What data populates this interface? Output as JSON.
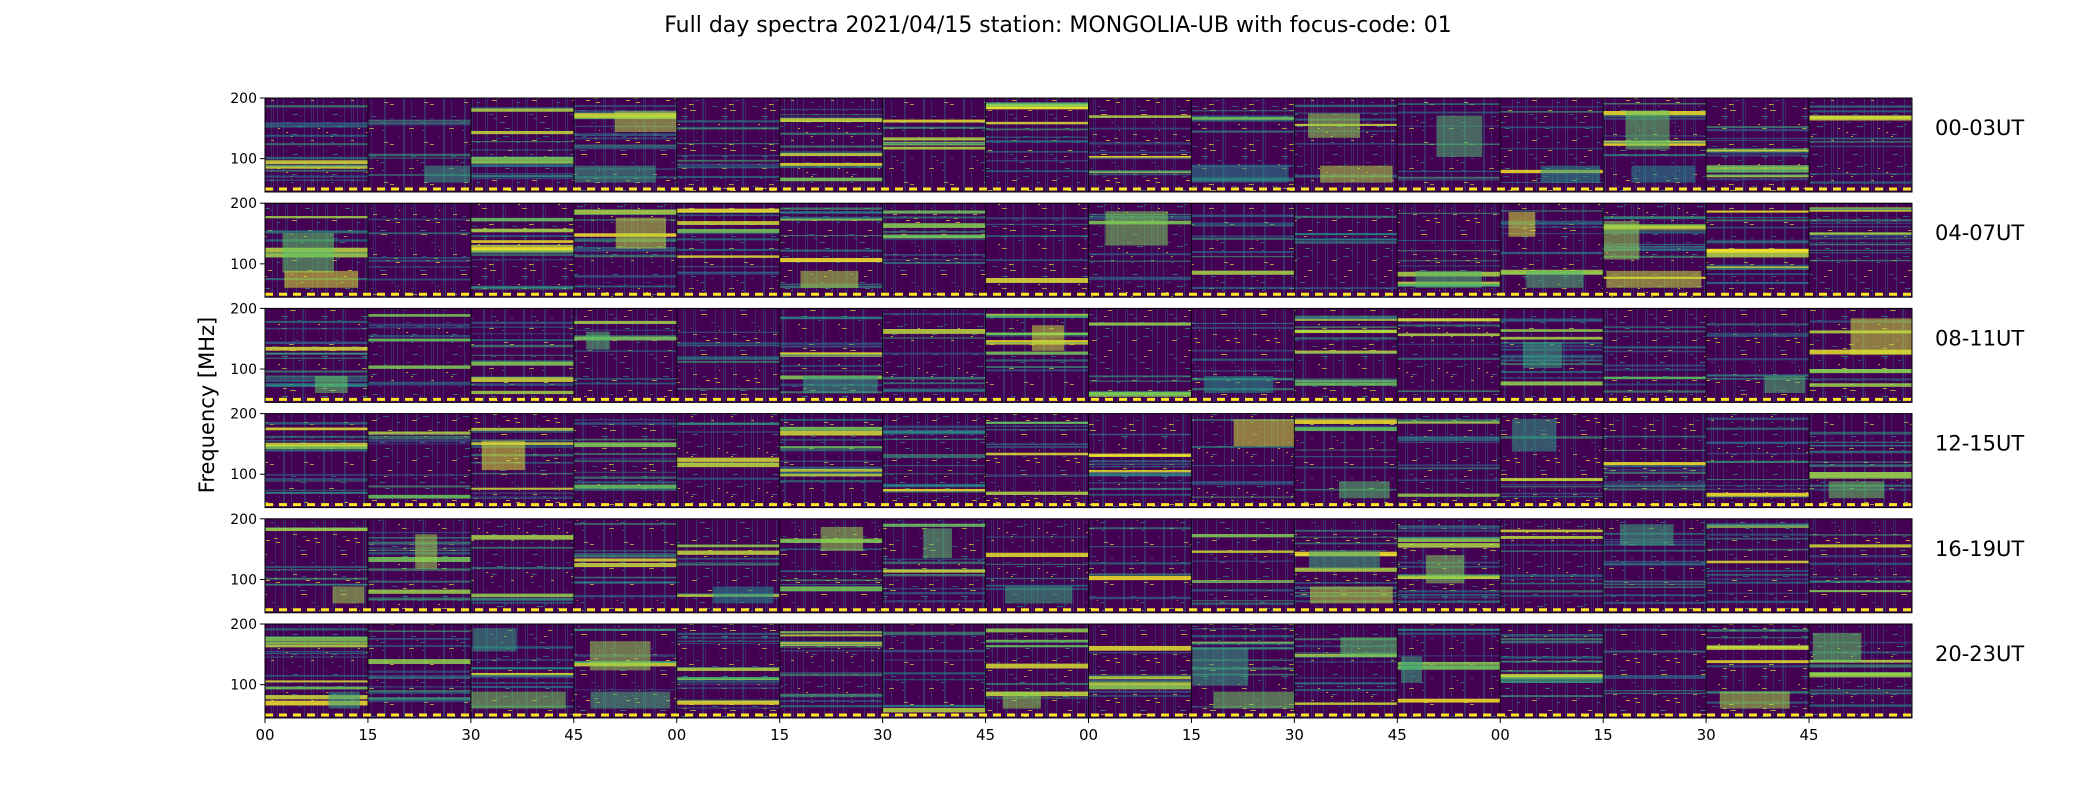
{
  "chart_data": {
    "type": "heatmap",
    "title": "Full day spectra 2021/04/15 station: MONGOLIA-UB with focus-code: 01",
    "ylabel": "Frequency [MHz]",
    "xlabel": "",
    "ylim": [
      45,
      200
    ],
    "y_ticks": [
      "200",
      "100"
    ],
    "x_tick_labels": [
      "00",
      "15",
      "30",
      "45",
      "00",
      "15",
      "30",
      "45",
      "00",
      "15",
      "30",
      "45",
      "00",
      "15",
      "30",
      "45"
    ],
    "panels_per_row": 16,
    "minutes_per_panel": 15,
    "colormap": "viridis",
    "colormap_stops": [
      "#440154",
      "#3b528b",
      "#21918c",
      "#5ec962",
      "#fde725"
    ],
    "rows": [
      {
        "label": "00-03UT"
      },
      {
        "label": "04-07UT"
      },
      {
        "label": "08-11UT"
      },
      {
        "label": "12-15UT"
      },
      {
        "label": "16-19UT"
      },
      {
        "label": "20-23UT"
      }
    ]
  }
}
